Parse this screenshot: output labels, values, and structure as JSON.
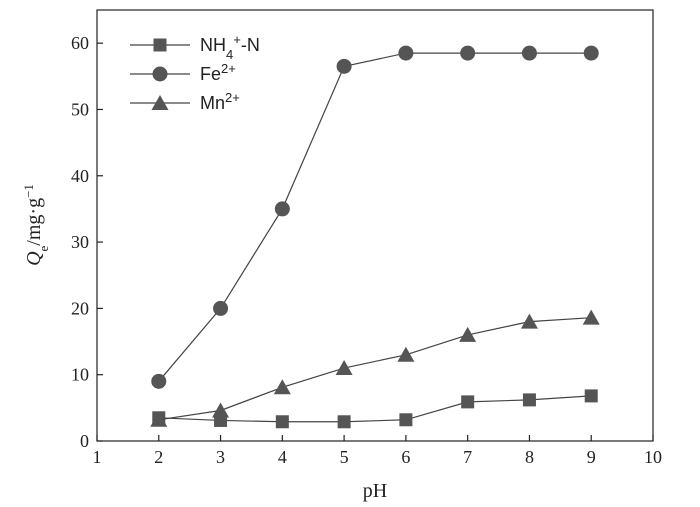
{
  "chart_data": {
    "type": "line",
    "xlabel": "pH",
    "ylabel": {
      "main": "Q",
      "sub": "e",
      "mid": "/mg·g",
      "sup": "−1"
    },
    "xlim": [
      1,
      10
    ],
    "ylim": [
      0,
      65
    ],
    "x_ticks": [
      1,
      2,
      3,
      4,
      5,
      6,
      7,
      8,
      9,
      10
    ],
    "y_ticks": [
      0,
      10,
      20,
      30,
      40,
      50,
      60
    ],
    "x_tick_labels": [
      "1",
      "2",
      "3",
      "4",
      "5",
      "6",
      "7",
      "8",
      "9",
      "10"
    ],
    "y_tick_labels": [
      "0",
      "10",
      "20",
      "30",
      "40",
      "50",
      "60"
    ],
    "legend_position": "top-left",
    "grid": false,
    "x": [
      2,
      3,
      4,
      5,
      6,
      7,
      8,
      9
    ],
    "series": [
      {
        "name": "NH4+-N",
        "legend": {
          "base": "NH",
          "sub": "4",
          "sup": "+",
          "rest": "-N"
        },
        "marker": "square",
        "color": "#555555",
        "values": [
          3.5,
          3.1,
          2.9,
          2.9,
          3.2,
          5.9,
          6.2,
          6.8
        ]
      },
      {
        "name": "Fe2+",
        "legend": {
          "base": "Fe",
          "sub": "",
          "sup": "2+",
          "rest": ""
        },
        "marker": "circle",
        "color": "#555555",
        "values": [
          9.0,
          20.0,
          35.0,
          56.5,
          58.5,
          58.5,
          58.5,
          58.5
        ]
      },
      {
        "name": "Mn2+",
        "legend": {
          "base": "Mn",
          "sub": "",
          "sup": "2+",
          "rest": ""
        },
        "marker": "triangle",
        "color": "#555555",
        "values": [
          3.2,
          4.6,
          8.1,
          11.0,
          13.0,
          16.0,
          18.0,
          18.6
        ]
      }
    ]
  }
}
